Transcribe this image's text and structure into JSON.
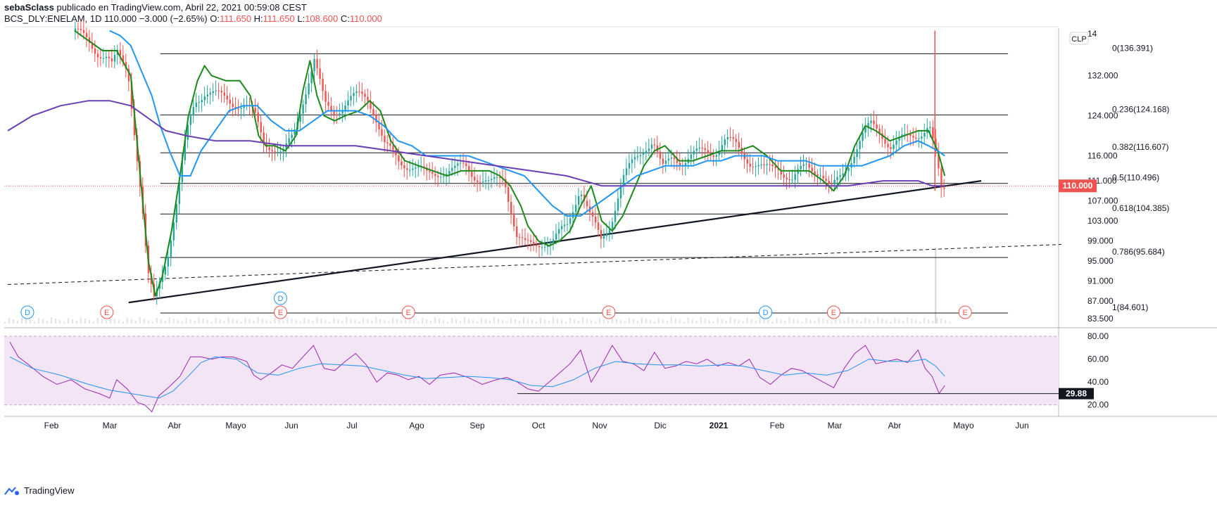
{
  "header": {
    "author": "sebaSclass",
    "published": "publicado en TradingView.com, Abril 22, 2021 00:59:08 CEST",
    "symbol": "BCS_DLY:ENELAM, 1D",
    "last": "110.000",
    "change": "−3.000 (−2.65%)",
    "o_label": "O:",
    "o": "111.650",
    "h_label": "H:",
    "h": "111.650",
    "l_label": "L:",
    "l": "108.600",
    "c_label": "C:",
    "c": "110.000"
  },
  "brand": "TradingView",
  "colors": {
    "up": "#26a69a",
    "down": "#ef5350",
    "ma_fast": "#1b8a1b",
    "ma_mid": "#2196f3",
    "ma_slow": "#6a3fb5",
    "rsi": "#9c27b0",
    "rsi_ma": "#2196f3",
    "rsi_band": "#f3e5f5"
  },
  "chart_data": {
    "type": "line",
    "title": "BCS_DLY:ENELAM, 1D",
    "currency_badge": "CLP",
    "price_axis": {
      "range": [
        82.5,
        141.5
      ],
      "ticks": [
        "132.000",
        "124.000",
        "116.000",
        "111.000",
        "107.000",
        "103.000",
        "99.000",
        "95.000",
        "91.000",
        "87.000",
        "83.500"
      ],
      "tick_values": [
        132,
        124,
        116,
        111,
        107,
        103,
        99,
        95,
        91,
        87,
        83.5
      ],
      "top_cut_label": "14"
    },
    "time_axis": {
      "labels": [
        "Feb",
        "Mar",
        "Abr",
        "Mayo",
        "Jun",
        "Jul",
        "Ago",
        "Sep",
        "Oct",
        "Nov",
        "Dic",
        "2021",
        "Feb",
        "Mar",
        "Abr",
        "Mayo",
        "Jun"
      ],
      "label_x": [
        73,
        156,
        248,
        335,
        414,
        500,
        592,
        678,
        765,
        852,
        938,
        1021,
        1104,
        1186,
        1271,
        1369,
        1452
      ],
      "t_range": [
        0,
        1500
      ]
    },
    "price_series": [
      {
        "name": "price (approx. close)",
        "t": [
          100,
          115,
          130,
          145,
          152,
          160,
          175,
          185,
          195,
          203,
          212,
          222,
          232,
          245,
          258,
          270,
          285,
          300,
          320,
          340,
          355,
          368,
          380,
          395,
          410,
          425,
          440,
          455,
          470,
          490,
          505,
          515,
          525,
          540,
          560,
          580,
          600,
          620,
          640,
          655,
          670,
          690,
          710,
          728,
          740,
          752,
          765,
          780,
          800,
          818,
          832,
          848,
          862,
          878,
          895,
          910,
          922,
          935,
          950,
          965,
          980,
          995,
          1010,
          1025,
          1040,
          1060,
          1080,
          1100,
          1120,
          1140,
          1160,
          1175,
          1190,
          1205,
          1220,
          1232,
          1245,
          1260,
          1275,
          1290,
          1305,
          1315,
          1325,
          1333,
          1338
        ],
        "values": [
          141,
          139,
          137,
          136,
          134,
          136,
          133,
          120,
          106,
          92,
          87,
          92,
          97,
          107,
          120,
          127,
          129,
          128,
          127,
          126,
          124,
          119,
          118,
          116,
          120,
          128,
          135,
          126,
          125,
          127,
          128,
          128,
          125,
          118,
          115,
          114,
          112,
          113,
          113,
          114,
          112,
          110,
          112,
          100,
          98,
          98,
          99,
          99,
          102,
          110,
          104,
          99,
          103,
          111,
          115,
          118,
          119,
          113,
          116,
          115,
          116,
          117,
          117,
          119,
          118,
          115,
          113,
          114,
          111,
          114,
          113,
          109,
          112,
          116,
          120,
          122,
          121,
          118,
          119,
          120,
          121,
          122,
          115,
          108,
          110
        ]
      },
      {
        "name": "MA fast (green)",
        "t": [
          100,
          120,
          140,
          160,
          180,
          195,
          205,
          215,
          225,
          238,
          250,
          262,
          275,
          285,
          295,
          315,
          335,
          350,
          362,
          372,
          385,
          400,
          415,
          425,
          435,
          445,
          455,
          470,
          485,
          505,
          520,
          535,
          550,
          570,
          590,
          610,
          630,
          650,
          670,
          690,
          705,
          720,
          735,
          745,
          760,
          775,
          790,
          805,
          820,
          835,
          850,
          865,
          880,
          895,
          910,
          925,
          940,
          960,
          980,
          1000,
          1020,
          1045,
          1065,
          1085,
          1105,
          1125,
          1145,
          1165,
          1180,
          1195,
          1210,
          1225,
          1240,
          1260,
          1280,
          1300,
          1315,
          1328,
          1338
        ],
        "values": [
          141,
          139,
          137,
          137,
          132,
          110,
          95,
          88,
          92,
          101,
          112,
          124,
          131,
          134,
          132,
          131,
          131,
          128,
          120,
          118,
          118,
          117,
          120,
          129,
          135,
          128,
          124,
          123,
          124,
          125,
          127,
          125,
          119,
          115,
          114,
          113,
          112,
          113,
          113,
          113,
          112,
          110,
          106,
          102,
          99,
          98,
          99,
          101,
          106,
          110,
          103,
          101,
          104,
          109,
          114,
          117,
          118,
          115,
          115,
          116,
          117,
          117,
          118,
          116,
          113,
          113,
          113,
          111,
          109,
          112,
          118,
          122,
          121,
          119,
          120,
          121,
          121,
          117,
          112
        ]
      },
      {
        "name": "MA mid (blue)",
        "t": [
          150,
          165,
          180,
          195,
          210,
          222,
          235,
          250,
          265,
          280,
          300,
          320,
          340,
          360,
          380,
          400,
          420,
          440,
          460,
          480,
          500,
          520,
          540,
          560,
          580,
          600,
          620,
          640,
          660,
          680,
          700,
          720,
          740,
          760,
          780,
          800,
          820,
          840,
          860,
          880,
          900,
          920,
          940,
          960,
          980,
          1000,
          1020,
          1040,
          1060,
          1080,
          1100,
          1120,
          1140,
          1160,
          1180,
          1200,
          1220,
          1240,
          1260,
          1280,
          1300,
          1315,
          1328,
          1338
        ],
        "values": [
          141,
          140,
          138,
          133,
          128,
          122,
          117,
          112,
          112,
          117,
          121,
          125,
          126,
          126,
          123,
          121,
          121,
          123,
          125,
          125,
          125,
          124,
          122,
          119,
          118,
          116,
          116,
          116,
          116,
          115,
          114,
          113,
          112,
          109,
          106,
          104,
          104,
          106,
          108,
          110,
          112,
          113,
          114,
          114,
          114,
          115,
          115,
          116,
          116,
          116,
          115,
          115,
          115,
          114,
          114,
          114,
          114,
          115,
          116,
          118,
          119,
          118,
          117,
          116
        ]
      },
      {
        "name": "MA slow (purple)",
        "t": [
          5,
          40,
          80,
          120,
          150,
          180,
          200,
          230,
          260,
          300,
          350,
          400,
          450,
          500,
          550,
          600,
          650,
          700,
          750,
          800,
          850,
          880,
          900,
          950,
          1000,
          1050,
          1100,
          1150,
          1200,
          1250,
          1280,
          1300,
          1320,
          1338
        ],
        "values": [
          121,
          124,
          126,
          127,
          127,
          126,
          124,
          121,
          120,
          119,
          119,
          118,
          118,
          118,
          117,
          116,
          115,
          114,
          113,
          112,
          110,
          110,
          110,
          110,
          110,
          110,
          110,
          110,
          110,
          111,
          111,
          111,
          110,
          110
        ]
      }
    ],
    "fibonacci": [
      {
        "level": "0",
        "value": 136.391,
        "label": "0(136.391)"
      },
      {
        "level": "0.236",
        "value": 124.168,
        "label": "0.236(124.168)"
      },
      {
        "level": "0.382",
        "value": 116.607,
        "label": "0.382(116.607)"
      },
      {
        "level": "0.5",
        "value": 110.496,
        "label": "0.5(110.496)"
      },
      {
        "level": "0.618",
        "value": 104.385,
        "label": "0.618(104.385)"
      },
      {
        "level": "0.786",
        "value": 95.684,
        "label": "0.786(95.684)"
      },
      {
        "level": "1",
        "value": 84.601,
        "label": "1(84.601)"
      }
    ],
    "fib_t_range": [
      222,
      1428
    ],
    "trendlines": [
      {
        "name": "support trendline",
        "style": "solid",
        "t": [
          177,
          1390
        ],
        "values": [
          86.7,
          111.0
        ]
      },
      {
        "name": "dashed trendline",
        "style": "dashed",
        "t": [
          5,
          1504
        ],
        "values": [
          90.3,
          98.3
        ]
      }
    ],
    "last_price": {
      "value": 110.0,
      "label": "110.000"
    },
    "spike": {
      "t": 1324,
      "high": 141,
      "low": 109
    },
    "events": [
      {
        "t": 33,
        "type": "D"
      },
      {
        "t": 146,
        "type": "E"
      },
      {
        "t": 393,
        "type": "D"
      },
      {
        "t": 393,
        "type": "E"
      },
      {
        "t": 575,
        "type": "E"
      },
      {
        "t": 860,
        "type": "E"
      },
      {
        "t": 1083,
        "type": "D"
      },
      {
        "t": 1180,
        "type": "E"
      },
      {
        "t": 1367,
        "type": "E"
      }
    ],
    "rsi": {
      "range": [
        10,
        85
      ],
      "ticks": [
        "80.00",
        "60.00",
        "40.00",
        "20.00"
      ],
      "tick_values": [
        80,
        60,
        40,
        20
      ],
      "band": [
        20,
        80
      ],
      "line_value": 29.88,
      "line_label": "29.88",
      "line_t_range": [
        730,
        1504
      ],
      "series": {
        "t": [
          8,
          20,
          35,
          55,
          75,
          95,
          115,
          135,
          150,
          160,
          175,
          190,
          200,
          210,
          220,
          235,
          250,
          265,
          280,
          295,
          310,
          325,
          345,
          355,
          365,
          380,
          395,
          410,
          425,
          440,
          455,
          470,
          485,
          500,
          515,
          530,
          545,
          560,
          575,
          590,
          605,
          620,
          640,
          660,
          680,
          700,
          715,
          730,
          745,
          760,
          775,
          790,
          805,
          820,
          835,
          850,
          865,
          880,
          895,
          910,
          925,
          940,
          955,
          970,
          985,
          1000,
          1015,
          1030,
          1045,
          1060,
          1075,
          1090,
          1105,
          1120,
          1135,
          1150,
          1165,
          1180,
          1195,
          1210,
          1225,
          1240,
          1255,
          1270,
          1285,
          1300,
          1310,
          1320,
          1330,
          1338
        ],
        "values": [
          75,
          62,
          55,
          45,
          38,
          42,
          34,
          30,
          26,
          42,
          34,
          22,
          20,
          14,
          28,
          36,
          45,
          62,
          62,
          60,
          62,
          62,
          58,
          46,
          42,
          48,
          55,
          52,
          62,
          72,
          52,
          50,
          58,
          65,
          55,
          40,
          48,
          46,
          42,
          45,
          38,
          46,
          48,
          44,
          38,
          42,
          44,
          40,
          34,
          32,
          40,
          48,
          56,
          68,
          40,
          55,
          72,
          58,
          56,
          50,
          66,
          52,
          54,
          58,
          56,
          60,
          54,
          57,
          54,
          60,
          44,
          38,
          46,
          52,
          50,
          45,
          40,
          35,
          52,
          65,
          72,
          56,
          58,
          60,
          57,
          68,
          52,
          45,
          30,
          37
        ]
      },
      "ma": {
        "t": [
          8,
          40,
          80,
          120,
          150,
          180,
          200,
          220,
          240,
          260,
          280,
          300,
          330,
          360,
          390,
          420,
          450,
          480,
          510,
          540,
          570,
          600,
          630,
          660,
          690,
          720,
          750,
          780,
          810,
          840,
          870,
          900,
          930,
          960,
          990,
          1020,
          1050,
          1080,
          1110,
          1140,
          1170,
          1200,
          1230,
          1260,
          1290,
          1310,
          1325,
          1338
        ],
        "values": [
          62,
          52,
          46,
          38,
          33,
          30,
          28,
          26,
          32,
          44,
          57,
          62,
          60,
          48,
          46,
          52,
          56,
          55,
          54,
          50,
          46,
          43,
          44,
          45,
          44,
          42,
          37,
          36,
          42,
          52,
          58,
          56,
          55,
          55,
          54,
          55,
          54,
          50,
          46,
          48,
          46,
          50,
          60,
          58,
          58,
          60,
          54,
          45
        ]
      }
    }
  }
}
